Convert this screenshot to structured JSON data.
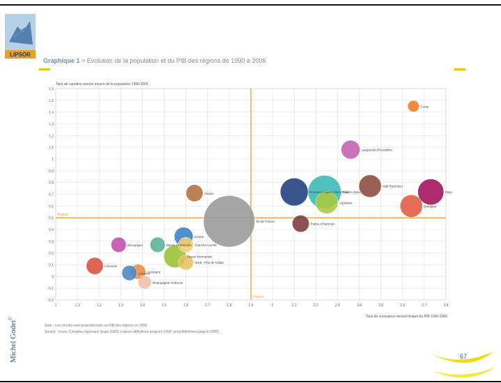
{
  "slide": {
    "logo_text": "LIPSOR",
    "heading_bold": "Graphique 1",
    "heading_rest": " > Evolution de la population et du PIB des régions de 1990 à 2006",
    "author": "Michel Godet",
    "author_mark": "©",
    "page_number": "67",
    "notes": [
      "Note : Les cercles sont proportionnels au PIB des régions en 2006",
      "Source : Insee, Comptes régionaux (base 2000) (valeurs définitives jusqu'en 1999, semi définitives jusqu'à 2006)"
    ],
    "colors": {
      "accent_yellow": "#f2c200",
      "rule": "#111111",
      "author": "#1a4f9a",
      "reference_lines": "#f0a040"
    }
  },
  "chart_data": {
    "type": "scatter",
    "title": "",
    "ylabel": "Taux de variation annuel moyen de la population 1990-2006",
    "xlabel": "Taux de croissance annuel moyen du PIB 1990-2006",
    "xlim": [
      1.0,
      2.8
    ],
    "ylim": [
      -0.2,
      1.6
    ],
    "x_ticks": [
      "1",
      "1,1",
      "1,2",
      "1,3",
      "1,4",
      "1,5",
      "1,6",
      "1,7",
      "1,8",
      "1,9",
      "2",
      "2,1",
      "2,2",
      "2,3",
      "2,4",
      "2,5",
      "2,6",
      "2,7",
      "2,8"
    ],
    "y_ticks": [
      "-0,2",
      "-0,1",
      "0",
      "0,1",
      "0,2",
      "0,3",
      "0,4",
      "0,5",
      "0,6",
      "0,7",
      "0,8",
      "0,9",
      "1",
      "1,1",
      "1,2",
      "1,3",
      "1,4",
      "1,5",
      "1,6"
    ],
    "grid": true,
    "reference_lines": {
      "x": 1.9,
      "y": 0.5,
      "x_label": "France",
      "y_label": "France"
    },
    "points": [
      {
        "label": "Corse",
        "x": 2.65,
        "y": 1.45,
        "size": 4,
        "color": "#ee7a22"
      },
      {
        "label": "Languedoc-Roussillon",
        "x": 2.36,
        "y": 1.08,
        "size": 8,
        "color": "#c060b0"
      },
      {
        "label": "Provence-Alpes-Côte d'Azur",
        "x": 2.1,
        "y": 0.72,
        "size": 13,
        "color": "#1e3f7c"
      },
      {
        "label": "Rhône-Alpes",
        "x": 2.24,
        "y": 0.72,
        "size": 16,
        "color": "#38b8b4"
      },
      {
        "label": "Aquitaine",
        "x": 2.25,
        "y": 0.63,
        "size": 10,
        "color": "#a8c840"
      },
      {
        "label": "Midi-Pyrénées",
        "x": 2.45,
        "y": 0.77,
        "size": 10,
        "color": "#8a4a3c"
      },
      {
        "label": "Pays de la Loire",
        "x": 2.73,
        "y": 0.72,
        "size": 12,
        "color": "#a0105a"
      },
      {
        "label": "Bretagne",
        "x": 2.64,
        "y": 0.6,
        "size": 10,
        "color": "#e05a3e"
      },
      {
        "label": "Alsace",
        "x": 1.64,
        "y": 0.71,
        "size": 7,
        "color": "#b0703c"
      },
      {
        "label": "Île-de-France",
        "x": 1.8,
        "y": 0.47,
        "size": 26,
        "color": "#999999"
      },
      {
        "label": "Poitou-Charentes",
        "x": 2.13,
        "y": 0.45,
        "size": 7,
        "color": "#7c3a3a"
      },
      {
        "label": "Centre",
        "x": 1.59,
        "y": 0.34,
        "size": 8,
        "color": "#3a80c0"
      },
      {
        "label": "Basse-Normandie",
        "x": 1.47,
        "y": 0.27,
        "size": 6,
        "color": "#58b09a"
      },
      {
        "label": "Franche-Comté",
        "x": 1.6,
        "y": 0.27,
        "size": 6,
        "color": "#f3d070"
      },
      {
        "label": "Bourgogne",
        "x": 1.29,
        "y": 0.27,
        "size": 6,
        "color": "#c050a8"
      },
      {
        "label": "Haute-Normandie",
        "x": 1.55,
        "y": 0.17,
        "size": 10,
        "color": "#9ac030"
      },
      {
        "label": "Nord - Pas-de-Calais",
        "x": 1.6,
        "y": 0.12,
        "size": 6,
        "color": "#e8c060"
      },
      {
        "label": "Limousin",
        "x": 1.18,
        "y": 0.09,
        "size": 7,
        "color": "#d8503c"
      },
      {
        "label": "Auvergne",
        "x": 1.38,
        "y": 0.04,
        "size": 6,
        "color": "#f08a3a"
      },
      {
        "label": "Lorraine",
        "x": 1.34,
        "y": 0.03,
        "size": 6,
        "color": "#4a86c4"
      },
      {
        "label": "Champagne-Ardenne",
        "x": 1.41,
        "y": -0.05,
        "size": 5,
        "color": "#f0c0a8"
      }
    ]
  }
}
